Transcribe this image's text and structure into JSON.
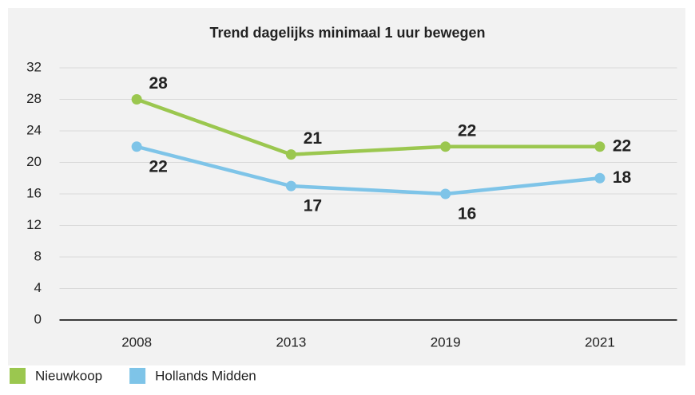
{
  "chart_data": {
    "type": "line",
    "title": "Trend dagelijks minimaal 1 uur bewegen",
    "categories": [
      "2008",
      "2013",
      "2019",
      "2021"
    ],
    "series": [
      {
        "name": "Nieuwkoop",
        "color": "#9bc74f",
        "values": [
          28,
          21,
          22,
          22
        ]
      },
      {
        "name": "Hollands Midden",
        "color": "#7ec4e8",
        "values": [
          22,
          17,
          16,
          18
        ]
      }
    ],
    "ylim": [
      0,
      32
    ],
    "yticks": [
      0,
      4,
      8,
      12,
      16,
      20,
      24,
      28,
      32
    ],
    "grid": true,
    "legend": "bottom"
  }
}
